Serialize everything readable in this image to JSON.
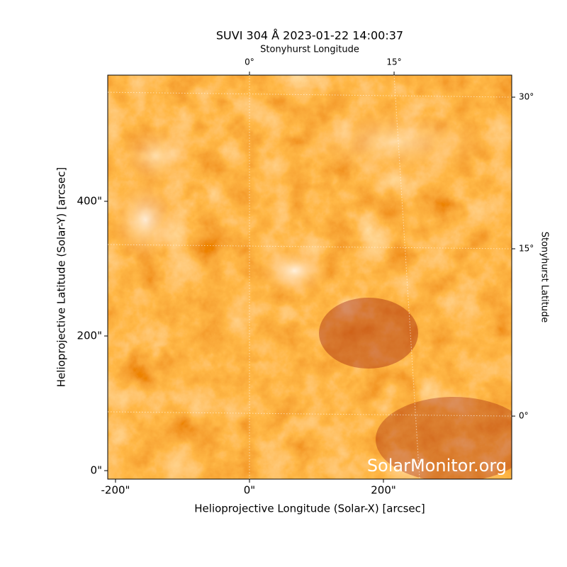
{
  "chart_data": {
    "type": "image",
    "title": "SUVI 304 Å 2023-01-22 14:00:37",
    "x_label": "Helioprojective Longitude (Solar-X) [arcsec]",
    "y_label": "Helioprojective Latitude (Solar-Y) [arcsec]",
    "top_label": "Stonyhurst Longitude",
    "right_label": "Stonyhurst Latitude",
    "watermark": "SolarMonitor.org",
    "colormap": [
      "#8c0000",
      "#d93a00",
      "#ff7a10",
      "#ffb050",
      "#fff4e8"
    ],
    "xlim": [
      -211.6,
      391.5
    ],
    "ylim": [
      -12.6,
      587.4
    ],
    "xticks": [
      {
        "value": -200,
        "label": "-200\""
      },
      {
        "value": 0,
        "label": "0\""
      },
      {
        "value": 200,
        "label": "200\""
      }
    ],
    "yticks": [
      {
        "value": 0,
        "label": "0\""
      },
      {
        "value": 200,
        "label": "200\""
      },
      {
        "value": 400,
        "label": "400\""
      }
    ],
    "lon_ticks": [
      {
        "value": 0,
        "label": "0°",
        "x_top": 0,
        "x_bottom": 0
      },
      {
        "value": 15,
        "label": "15°",
        "x_top": 215.9,
        "x_bottom": 254
      }
    ],
    "lat_ticks": [
      {
        "value": 30,
        "label": "30°",
        "y_left": 562,
        "y_right": 554.7
      },
      {
        "value": 15,
        "label": "15°",
        "y_left": 335.8,
        "y_right": 329.5
      },
      {
        "value": 0,
        "label": "0°",
        "y_left": 87.4,
        "y_right": 81
      }
    ],
    "grid": true
  }
}
